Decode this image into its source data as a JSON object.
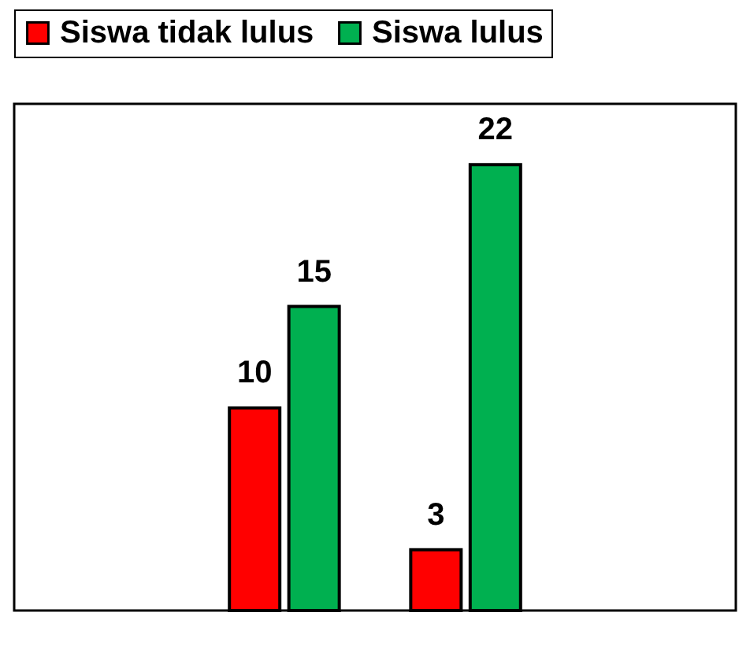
{
  "chart_data": {
    "type": "bar",
    "categories": [
      null,
      null
    ],
    "series": [
      {
        "name": "Siswa tidak lulus",
        "color": "#ff0000",
        "values": [
          10,
          3
        ]
      },
      {
        "name": "Siswa lulus",
        "color": "#00b050",
        "values": [
          15,
          22
        ]
      }
    ],
    "data_labels": true,
    "legend": "top",
    "grid": false
  }
}
